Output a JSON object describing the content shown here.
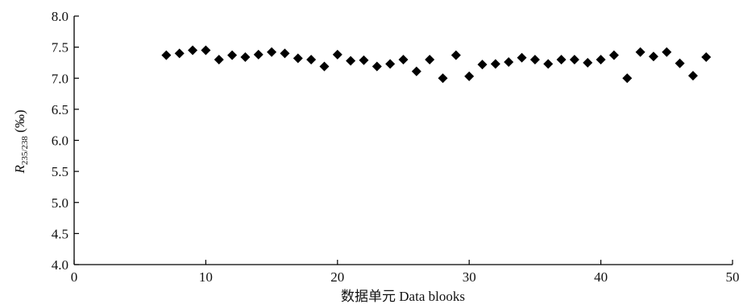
{
  "chart_data": {
    "type": "scatter",
    "title": "",
    "xlabel": "数据单元 Data blooks",
    "ylabel": {
      "main": "R",
      "subscript": "235/238",
      "unit": " (‰)"
    },
    "xlim": [
      0,
      50
    ],
    "ylim": [
      4.0,
      8.0
    ],
    "xticks": [
      0,
      10,
      20,
      30,
      40,
      50
    ],
    "yticks": [
      4.0,
      4.5,
      5.0,
      5.5,
      6.0,
      6.5,
      7.0,
      7.5,
      8.0
    ],
    "xtick_labels": [
      "0",
      "10",
      "20",
      "30",
      "40",
      "50"
    ],
    "ytick_labels": [
      "4.0",
      "4.5",
      "5.0",
      "5.5",
      "6.0",
      "6.5",
      "7.0",
      "7.5",
      "8.0"
    ],
    "grid": false,
    "marker": "diamond",
    "marker_color": "#000000",
    "series": [
      {
        "x": [
          7,
          8,
          9,
          10,
          11,
          12,
          13,
          14,
          15,
          16,
          17,
          18,
          19,
          20,
          21,
          22,
          23,
          24,
          25,
          26,
          27,
          28,
          29,
          30,
          31,
          32,
          33,
          34,
          35,
          36,
          37,
          38,
          39,
          40,
          41,
          42,
          43,
          44,
          45,
          46,
          47,
          48
        ],
        "y": [
          7.37,
          7.4,
          7.45,
          7.45,
          7.3,
          7.37,
          7.34,
          7.38,
          7.42,
          7.4,
          7.32,
          7.3,
          7.19,
          7.38,
          7.28,
          7.29,
          7.19,
          7.23,
          7.3,
          7.11,
          7.3,
          7.0,
          7.37,
          7.03,
          7.22,
          7.23,
          7.26,
          7.33,
          7.3,
          7.23,
          7.3,
          7.3,
          7.25,
          7.3,
          7.37,
          7.0,
          7.42,
          7.35,
          7.42,
          7.24,
          7.04,
          7.34
        ]
      }
    ]
  }
}
